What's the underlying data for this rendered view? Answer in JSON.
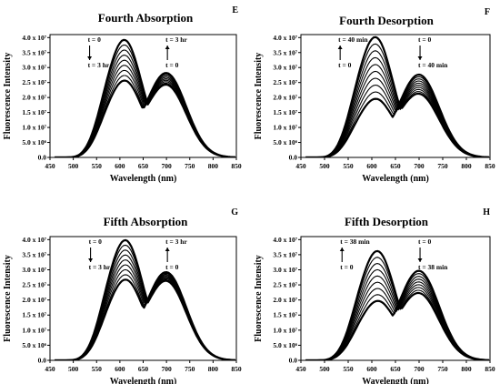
{
  "chart_data": [
    {
      "panel": "E",
      "title": "Fourth Absorption",
      "type": "line",
      "xlabel": "Wavelength (nm)",
      "ylabel": "Fluorescence Intensity",
      "xlim": [
        450,
        850
      ],
      "ylim": [
        0,
        41000000.0
      ],
      "x_ticks": [
        "450",
        "500",
        "550",
        "600",
        "650",
        "700",
        "750",
        "800",
        "850"
      ],
      "y_ticks": [
        "0.0",
        "5.0 x 10⁶",
        "1.0 x 10⁷",
        "1.5 x 10⁷",
        "2.0 x 10⁷",
        "2.5 x 10⁷",
        "3.0 x 10⁷",
        "3.5 x 10⁷",
        "4.0 x 10⁷"
      ],
      "annotations": {
        "left_top": "t = 0",
        "left_bottom": "t = 3 hr",
        "right_top": "t = 3 hr",
        "right_bottom": "t = 0"
      },
      "arrows": {
        "left": "down",
        "right": "up"
      },
      "n_curves": 9,
      "peak_left": {
        "x": 610,
        "y_start": 38500000.0,
        "y_end": 25000000.0
      },
      "peak_right": {
        "x": 700,
        "y_start": 24000000.0,
        "y_end": 28000000.0
      },
      "isosbestic": {
        "x": 683,
        "y": 26500000.0
      }
    },
    {
      "panel": "F",
      "title": "Fourth Desorption",
      "type": "line",
      "xlabel": "Wavelength (nm)",
      "ylabel": "Fluorescence Intensity",
      "xlim": [
        450,
        850
      ],
      "ylim": [
        0,
        41000000.0
      ],
      "x_ticks": [
        "450",
        "500",
        "550",
        "600",
        "650",
        "700",
        "750",
        "800",
        "850"
      ],
      "y_ticks": [
        "0.0",
        "5.0 x 10⁶",
        "1.0 x 10⁷",
        "1.5 x 10⁷",
        "2.0 x 10⁷",
        "2.5 x 10⁷",
        "3.0 x 10⁷",
        "3.5 x 10⁷",
        "4.0 x 10⁷"
      ],
      "annotations": {
        "left_top": "t = 40 min",
        "left_bottom": "t = 0",
        "right_top": "t = 0",
        "right_bottom": "t = 40 min"
      },
      "arrows": {
        "left": "up",
        "right": "down"
      },
      "n_curves": 10,
      "peak_left": {
        "x": 608,
        "y_start": 19000000.0,
        "y_end": 39500000.0
      },
      "peak_right": {
        "x": 700,
        "y_start": 27500000.0,
        "y_end": 21000000.0
      },
      "isosbestic": {
        "x": 683,
        "y": 27000000.0
      }
    },
    {
      "panel": "G",
      "title": "Fifth Absorption",
      "type": "line",
      "xlabel": "Wavelength (nm)",
      "ylabel": "Fluorescence Intensity",
      "xlim": [
        450,
        850
      ],
      "ylim": [
        0,
        41000000.0
      ],
      "x_ticks": [
        "450",
        "500",
        "550",
        "600",
        "650",
        "700",
        "750",
        "800",
        "850"
      ],
      "y_ticks": [
        "0.0",
        "5.0 x 10⁶",
        "1.0 x 10⁷",
        "1.5 x 10⁷",
        "2.0 x 10⁷",
        "2.5 x 10⁷",
        "3.0 x 10⁷",
        "3.5 x 10⁷",
        "4.0 x 10⁷"
      ],
      "annotations": {
        "left_top": "t = 0",
        "left_bottom": "t = 3 hr",
        "right_top": "t = 3 hr",
        "right_bottom": "t = 0"
      },
      "arrows": {
        "left": "down",
        "right": "up"
      },
      "n_curves": 9,
      "peak_left": {
        "x": 612,
        "y_start": 39000000.0,
        "y_end": 26000000.0
      },
      "peak_right": {
        "x": 700,
        "y_start": 26000000.0,
        "y_end": 29000000.0
      },
      "isosbestic": {
        "x": 688,
        "y": 28500000.0
      }
    },
    {
      "panel": "H",
      "title": "Fifth Desorption",
      "type": "line",
      "xlabel": "Wavelength (nm)",
      "ylabel": "Fluorescence Intensity",
      "xlim": [
        450,
        850
      ],
      "ylim": [
        0,
        41000000.0
      ],
      "x_ticks": [
        "450",
        "500",
        "550",
        "600",
        "650",
        "700",
        "750",
        "800",
        "850"
      ],
      "y_ticks": [
        "0.0",
        "5.0 x 10⁶",
        "1.0 x 10⁷",
        "1.5 x 10⁷",
        "2.0 x 10⁷",
        "2.5 x 10⁷",
        "3.0 x 10⁷",
        "3.5 x 10⁷",
        "4.0 x 10⁷"
      ],
      "annotations": {
        "left_top": "t = 38 min",
        "left_bottom": "t = 0",
        "right_top": "t = 0",
        "right_bottom": "t = 38 min"
      },
      "arrows": {
        "left": "up",
        "right": "down"
      },
      "n_curves": 9,
      "peak_left": {
        "x": 612,
        "y_start": 19000000.0,
        "y_end": 35500000.0
      },
      "peak_right": {
        "x": 700,
        "y_start": 29500000.0,
        "y_end": 22000000.0
      },
      "isosbestic": {
        "x": 685,
        "y": 28000000.0
      }
    }
  ]
}
